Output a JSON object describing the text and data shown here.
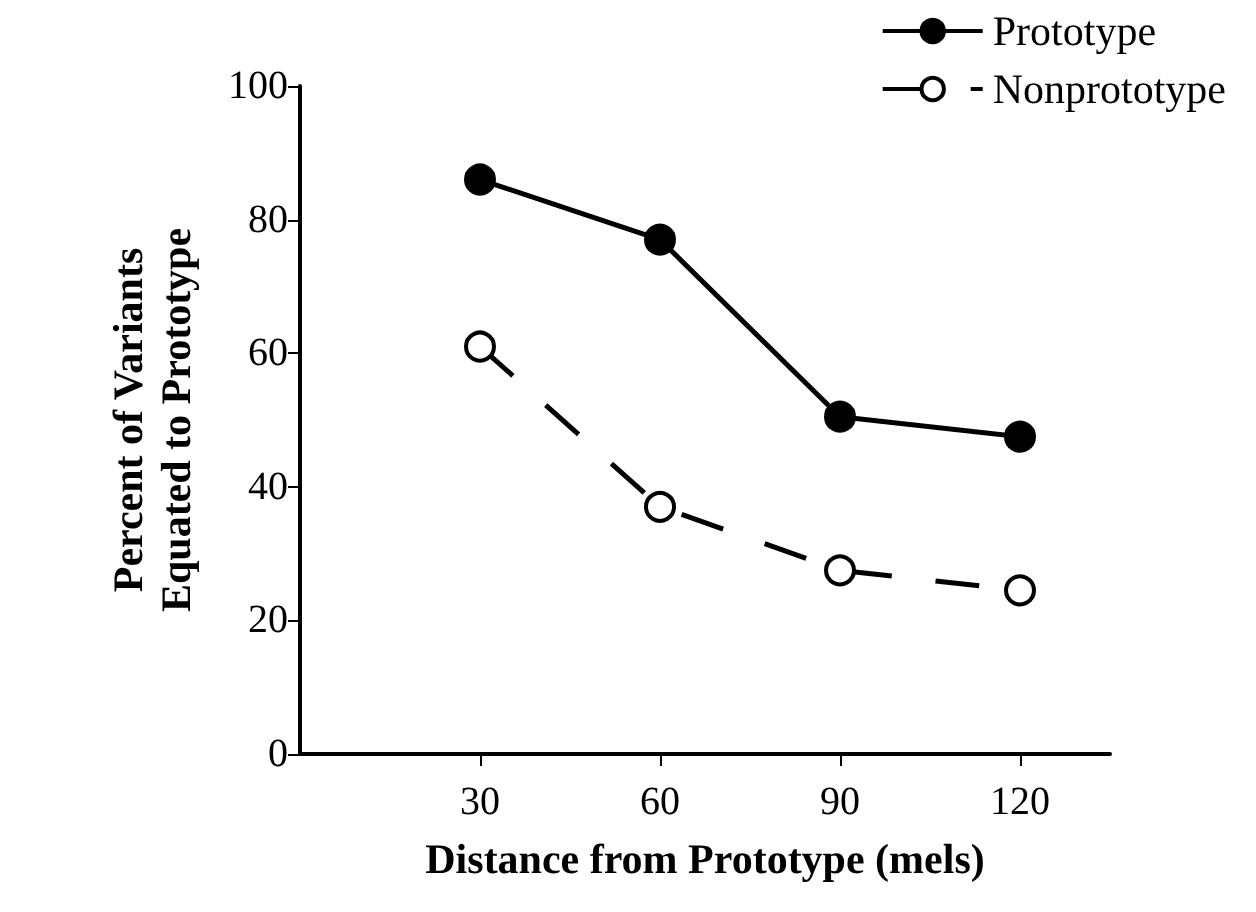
{
  "chart_data": {
    "type": "line",
    "xlabel": "Distance from Prototype (mels)",
    "ylabel": "Percent of Variants\nEquated to Prototype",
    "x": [
      30,
      60,
      90,
      120
    ],
    "xlim": [
      0,
      135
    ],
    "xticks": [
      30,
      60,
      90,
      120
    ],
    "ylim": [
      0,
      100
    ],
    "yticks": [
      0,
      20,
      40,
      60,
      80,
      100
    ],
    "series": [
      {
        "name": "Prototype",
        "color": "#000000",
        "values": [
          86,
          77,
          50.5,
          47.5
        ],
        "marker": "circle",
        "line_style": "solid"
      },
      {
        "name": "Nonprototype",
        "color": "#000000",
        "values": [
          61,
          37,
          27.5,
          24.5
        ],
        "marker": "circle",
        "line_style": "dashed"
      }
    ],
    "grid": false,
    "legend": "top right"
  }
}
